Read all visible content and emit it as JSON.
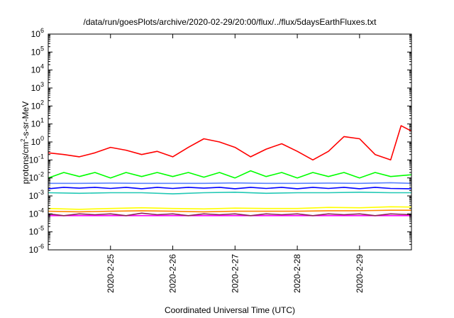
{
  "chart_data": {
    "type": "line",
    "title": "/data/run/goesPlots/archive/2020-02-29/20:00/flux/../flux/5daysEarthFluxes.txt",
    "xlabel": "Coordinated Universal Time (UTC)",
    "ylabel": {
      "prefix": "protons/cm",
      "sup": "2",
      "suffix": "-s-sr-MeV"
    },
    "yscale": "log",
    "ylim": [
      1e-06,
      1000000.0
    ],
    "xlim": [
      "2020-02-24T00:00",
      "2020-02-29T20:00"
    ],
    "y_ticks": [
      {
        "base": "10",
        "exp": "-6",
        "value": 1e-06
      },
      {
        "base": "10",
        "exp": "-5",
        "value": 1e-05
      },
      {
        "base": "10",
        "exp": "-4",
        "value": 0.0001
      },
      {
        "base": "10",
        "exp": "-3",
        "value": 0.001
      },
      {
        "base": "10",
        "exp": "-2",
        "value": 0.01
      },
      {
        "base": "10",
        "exp": "-1",
        "value": 0.1
      },
      {
        "base": "10",
        "exp": "0",
        "value": 1
      },
      {
        "base": "10",
        "exp": "1",
        "value": 10
      },
      {
        "base": "10",
        "exp": "2",
        "value": 100
      },
      {
        "base": "10",
        "exp": "3",
        "value": 1000
      },
      {
        "base": "10",
        "exp": "4",
        "value": 10000
      },
      {
        "base": "10",
        "exp": "5",
        "value": 100000
      },
      {
        "base": "10",
        "exp": "6",
        "value": 1000000
      }
    ],
    "x_ticks": [
      {
        "label": "2020-2-25",
        "value": "2020-02-25T00:00"
      },
      {
        "label": "2020-2-26",
        "value": "2020-02-26T00:00"
      },
      {
        "label": "2020-2-27",
        "value": "2020-02-27T00:00"
      },
      {
        "label": "2020-2-28",
        "value": "2020-02-28T00:00"
      },
      {
        "label": "2020-2-29",
        "value": "2020-02-29T00:00"
      }
    ],
    "grid": false,
    "legend": "none",
    "series": [
      {
        "color": "#ff00ff",
        "values": [
          [
            "2020-02-24T00:00",
            8e-05
          ],
          [
            "2020-02-24T12:00",
            8e-05
          ],
          [
            "2020-02-25T00:00",
            8e-05
          ],
          [
            "2020-02-25T12:00",
            8e-05
          ],
          [
            "2020-02-26T00:00",
            8e-05
          ],
          [
            "2020-02-26T12:00",
            8e-05
          ],
          [
            "2020-02-27T00:00",
            8e-05
          ],
          [
            "2020-02-27T12:00",
            8e-05
          ],
          [
            "2020-02-28T00:00",
            8e-05
          ],
          [
            "2020-02-28T12:00",
            8e-05
          ],
          [
            "2020-02-29T00:00",
            8e-05
          ],
          [
            "2020-02-29T12:00",
            8e-05
          ],
          [
            "2020-02-29T20:00",
            8e-05
          ]
        ]
      },
      {
        "color": "#ffff00",
        "values": [
          [
            "2020-02-24T00:00",
            0.0002
          ],
          [
            "2020-02-24T12:00",
            0.00018
          ],
          [
            "2020-02-25T00:00",
            0.0002
          ],
          [
            "2020-02-25T12:00",
            0.00022
          ],
          [
            "2020-02-26T00:00",
            0.0002
          ],
          [
            "2020-02-26T12:00",
            0.00019
          ],
          [
            "2020-02-27T00:00",
            0.00021
          ],
          [
            "2020-02-27T12:00",
            0.0002
          ],
          [
            "2020-02-28T00:00",
            0.0002
          ],
          [
            "2020-02-28T12:00",
            0.00023
          ],
          [
            "2020-02-29T00:00",
            0.00022
          ],
          [
            "2020-02-29T12:00",
            0.00025
          ],
          [
            "2020-02-29T20:00",
            0.00024
          ]
        ]
      },
      {
        "color": "#ff8800",
        "values": [
          [
            "2020-02-24T00:00",
            0.00014
          ],
          [
            "2020-02-24T12:00",
            0.00013
          ],
          [
            "2020-02-25T00:00",
            0.00014
          ],
          [
            "2020-02-25T12:00",
            0.00015
          ],
          [
            "2020-02-26T00:00",
            0.00014
          ],
          [
            "2020-02-26T12:00",
            0.00013
          ],
          [
            "2020-02-27T00:00",
            0.00014
          ],
          [
            "2020-02-27T12:00",
            0.00014
          ],
          [
            "2020-02-28T00:00",
            0.00014
          ],
          [
            "2020-02-28T12:00",
            0.00015
          ],
          [
            "2020-02-29T00:00",
            0.00015
          ],
          [
            "2020-02-29T12:00",
            0.00016
          ],
          [
            "2020-02-29T20:00",
            0.00016
          ]
        ]
      },
      {
        "color": "#8b2252",
        "values": [
          [
            "2020-02-24T00:00",
            0.0001
          ],
          [
            "2020-02-24T06:00",
            8e-05
          ],
          [
            "2020-02-24T12:00",
            0.0001
          ],
          [
            "2020-02-24T18:00",
            9e-05
          ],
          [
            "2020-02-25T00:00",
            0.0001
          ],
          [
            "2020-02-25T06:00",
            8e-05
          ],
          [
            "2020-02-25T12:00",
            0.00011
          ],
          [
            "2020-02-25T18:00",
            9e-05
          ],
          [
            "2020-02-26T00:00",
            0.0001
          ],
          [
            "2020-02-26T06:00",
            8e-05
          ],
          [
            "2020-02-26T12:00",
            0.0001
          ],
          [
            "2020-02-26T18:00",
            9e-05
          ],
          [
            "2020-02-27T00:00",
            0.0001
          ],
          [
            "2020-02-27T06:00",
            8e-05
          ],
          [
            "2020-02-27T12:00",
            0.0001
          ],
          [
            "2020-02-27T18:00",
            9e-05
          ],
          [
            "2020-02-28T00:00",
            0.0001
          ],
          [
            "2020-02-28T06:00",
            8e-05
          ],
          [
            "2020-02-28T12:00",
            0.0001
          ],
          [
            "2020-02-28T18:00",
            9e-05
          ],
          [
            "2020-02-29T00:00",
            0.0001
          ],
          [
            "2020-02-29T06:00",
            8e-05
          ],
          [
            "2020-02-29T12:00",
            0.0001
          ],
          [
            "2020-02-29T20:00",
            9e-05
          ]
        ]
      },
      {
        "color": "#20c8b4",
        "values": [
          [
            "2020-02-24T00:00",
            0.0015
          ],
          [
            "2020-02-24T12:00",
            0.0014
          ],
          [
            "2020-02-25T00:00",
            0.0015
          ],
          [
            "2020-02-25T12:00",
            0.0015
          ],
          [
            "2020-02-26T00:00",
            0.0013
          ],
          [
            "2020-02-26T12:00",
            0.0015
          ],
          [
            "2020-02-27T00:00",
            0.0016
          ],
          [
            "2020-02-27T12:00",
            0.0014
          ],
          [
            "2020-02-28T00:00",
            0.0015
          ],
          [
            "2020-02-28T12:00",
            0.0015
          ],
          [
            "2020-02-29T00:00",
            0.0016
          ],
          [
            "2020-02-29T12:00",
            0.0015
          ],
          [
            "2020-02-29T20:00",
            0.0015
          ]
        ]
      },
      {
        "color": "#0000ff",
        "values": [
          [
            "2020-02-24T00:00",
            0.0025
          ],
          [
            "2020-02-24T06:00",
            0.003
          ],
          [
            "2020-02-24T12:00",
            0.0027
          ],
          [
            "2020-02-24T18:00",
            0.003
          ],
          [
            "2020-02-25T00:00",
            0.0026
          ],
          [
            "2020-02-25T06:00",
            0.003
          ],
          [
            "2020-02-25T12:00",
            0.0025
          ],
          [
            "2020-02-25T18:00",
            0.003
          ],
          [
            "2020-02-26T00:00",
            0.0026
          ],
          [
            "2020-02-26T06:00",
            0.003
          ],
          [
            "2020-02-26T12:00",
            0.0027
          ],
          [
            "2020-02-26T18:00",
            0.003
          ],
          [
            "2020-02-27T00:00",
            0.0025
          ],
          [
            "2020-02-27T06:00",
            0.003
          ],
          [
            "2020-02-27T12:00",
            0.0026
          ],
          [
            "2020-02-27T18:00",
            0.003
          ],
          [
            "2020-02-28T00:00",
            0.0025
          ],
          [
            "2020-02-28T06:00",
            0.003
          ],
          [
            "2020-02-28T12:00",
            0.0026
          ],
          [
            "2020-02-28T18:00",
            0.003
          ],
          [
            "2020-02-29T00:00",
            0.0025
          ],
          [
            "2020-02-29T06:00",
            0.003
          ],
          [
            "2020-02-29T12:00",
            0.0026
          ],
          [
            "2020-02-29T20:00",
            0.0025
          ]
        ]
      },
      {
        "color": "#5a82ff",
        "values": [
          [
            "2020-02-24T00:00",
            0.005
          ],
          [
            "2020-02-24T12:00",
            0.005
          ],
          [
            "2020-02-25T00:00",
            0.0052
          ],
          [
            "2020-02-25T12:00",
            0.005
          ],
          [
            "2020-02-26T00:00",
            0.005
          ],
          [
            "2020-02-26T12:00",
            0.005
          ],
          [
            "2020-02-27T00:00",
            0.0053
          ],
          [
            "2020-02-27T12:00",
            0.005
          ],
          [
            "2020-02-28T00:00",
            0.005
          ],
          [
            "2020-02-28T12:00",
            0.0052
          ],
          [
            "2020-02-29T00:00",
            0.005
          ],
          [
            "2020-02-29T12:00",
            0.0054
          ],
          [
            "2020-02-29T20:00",
            0.005
          ]
        ]
      },
      {
        "color": "#00ff00",
        "values": [
          [
            "2020-02-24T00:00",
            0.01
          ],
          [
            "2020-02-24T06:00",
            0.02
          ],
          [
            "2020-02-24T12:00",
            0.012
          ],
          [
            "2020-02-24T18:00",
            0.02
          ],
          [
            "2020-02-25T00:00",
            0.01
          ],
          [
            "2020-02-25T06:00",
            0.02
          ],
          [
            "2020-02-25T12:00",
            0.012
          ],
          [
            "2020-02-25T18:00",
            0.02
          ],
          [
            "2020-02-26T00:00",
            0.012
          ],
          [
            "2020-02-26T06:00",
            0.02
          ],
          [
            "2020-02-26T12:00",
            0.011
          ],
          [
            "2020-02-26T18:00",
            0.02
          ],
          [
            "2020-02-27T00:00",
            0.01
          ],
          [
            "2020-02-27T06:00",
            0.025
          ],
          [
            "2020-02-27T12:00",
            0.012
          ],
          [
            "2020-02-27T18:00",
            0.02
          ],
          [
            "2020-02-28T00:00",
            0.01
          ],
          [
            "2020-02-28T06:00",
            0.02
          ],
          [
            "2020-02-28T12:00",
            0.012
          ],
          [
            "2020-02-28T18:00",
            0.02
          ],
          [
            "2020-02-29T00:00",
            0.01
          ],
          [
            "2020-02-29T06:00",
            0.02
          ],
          [
            "2020-02-29T12:00",
            0.012
          ],
          [
            "2020-02-29T20:00",
            0.015
          ]
        ]
      },
      {
        "color": "#ff0000",
        "values": [
          [
            "2020-02-24T00:00",
            0.25
          ],
          [
            "2020-02-24T06:00",
            0.2
          ],
          [
            "2020-02-24T12:00",
            0.15
          ],
          [
            "2020-02-24T18:00",
            0.25
          ],
          [
            "2020-02-25T00:00",
            0.5
          ],
          [
            "2020-02-25T06:00",
            0.35
          ],
          [
            "2020-02-25T12:00",
            0.2
          ],
          [
            "2020-02-25T18:00",
            0.3
          ],
          [
            "2020-02-26T00:00",
            0.15
          ],
          [
            "2020-02-26T06:00",
            0.5
          ],
          [
            "2020-02-26T12:00",
            1.5
          ],
          [
            "2020-02-26T18:00",
            1.0
          ],
          [
            "2020-02-27T00:00",
            0.5
          ],
          [
            "2020-02-27T06:00",
            0.15
          ],
          [
            "2020-02-27T12:00",
            0.4
          ],
          [
            "2020-02-27T18:00",
            0.8
          ],
          [
            "2020-02-28T00:00",
            0.3
          ],
          [
            "2020-02-28T06:00",
            0.1
          ],
          [
            "2020-02-28T12:00",
            0.3
          ],
          [
            "2020-02-28T18:00",
            2.0
          ],
          [
            "2020-02-29T00:00",
            1.5
          ],
          [
            "2020-02-29T06:00",
            0.2
          ],
          [
            "2020-02-29T12:00",
            0.1
          ],
          [
            "2020-02-29T16:00",
            8.0
          ],
          [
            "2020-02-29T20:00",
            4.0
          ]
        ]
      }
    ]
  }
}
